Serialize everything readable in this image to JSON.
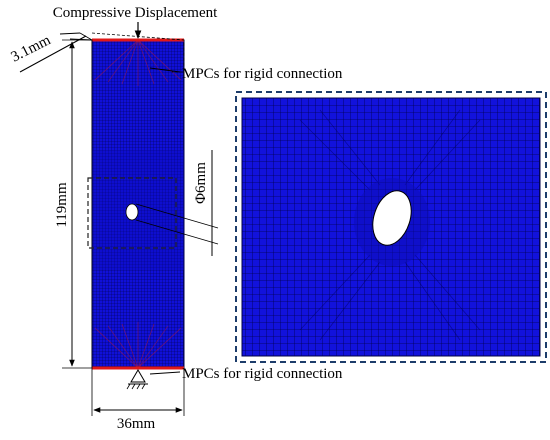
{
  "labels": {
    "load": "Compressive Displacement",
    "thickness": "3.1mm",
    "mpc_top": "MPCs for rigid connection",
    "mpc_bottom": "MPCs for rigid connection",
    "length": "119mm",
    "hole_diameter": "Φ6mm",
    "width": "36mm"
  },
  "colors": {
    "mesh_fill": "#1010d8",
    "mesh_line": "#00004a",
    "mpc_red": "#e01818",
    "dash_box": "#1d3d6b",
    "line": "#000000"
  }
}
